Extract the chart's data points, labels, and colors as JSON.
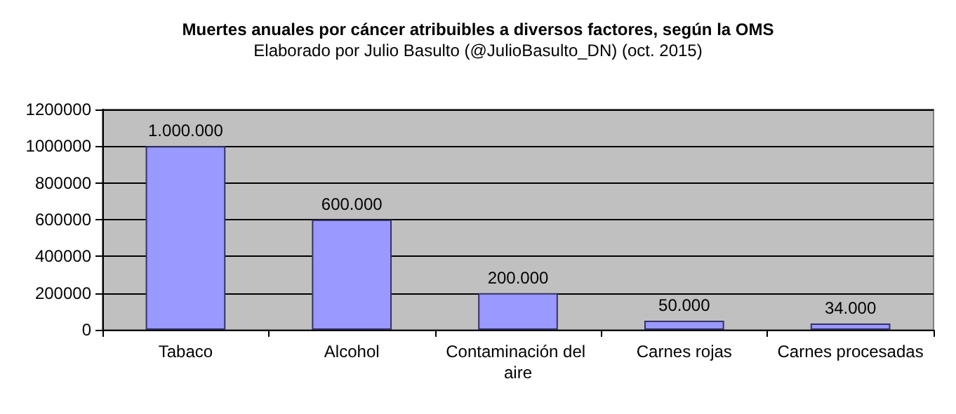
{
  "chart_data": {
    "type": "bar",
    "title": "Muertes anuales por cáncer atribuibles a diversos factores, según la OMS",
    "subtitle": "Elaborado por Julio Basulto (@JulioBasulto_DN) (oct. 2015)",
    "categories": [
      "Tabaco",
      "Alcohol",
      "Contaminación del aire",
      "Carnes rojas",
      "Carnes procesadas"
    ],
    "values": [
      1000000,
      600000,
      200000,
      50000,
      34000
    ],
    "value_labels": [
      "1.000.000",
      "600.000",
      "200.000",
      "50.000",
      "34.000"
    ],
    "color": "#9999ff",
    "ylim": [
      0,
      1200000
    ],
    "yticks": [
      0,
      200000,
      400000,
      600000,
      800000,
      1000000,
      1200000
    ],
    "grid": "y"
  }
}
